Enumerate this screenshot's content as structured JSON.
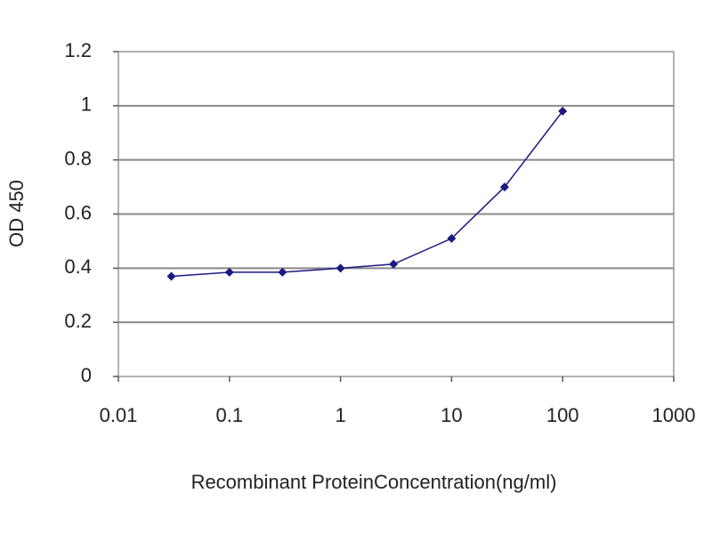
{
  "chart_data": {
    "type": "line",
    "x_label": "Recombinant ProteinConcentration(ng/ml)",
    "y_label": "OD 450",
    "x": [
      0.03,
      0.1,
      0.3,
      1,
      3,
      10,
      30,
      100
    ],
    "values": [
      0.37,
      0.385,
      0.385,
      0.4,
      0.415,
      0.51,
      0.7,
      0.98
    ],
    "color": "#1a1a80",
    "xlog": true,
    "xlim": [
      0.01,
      1000
    ],
    "xticks": [
      0.01,
      0.1,
      1,
      10,
      100,
      1000
    ],
    "ylim": [
      0,
      1.2
    ],
    "yticks": [
      0,
      0.2,
      0.4,
      0.6,
      0.8,
      1,
      1.2
    ],
    "grid": true
  }
}
